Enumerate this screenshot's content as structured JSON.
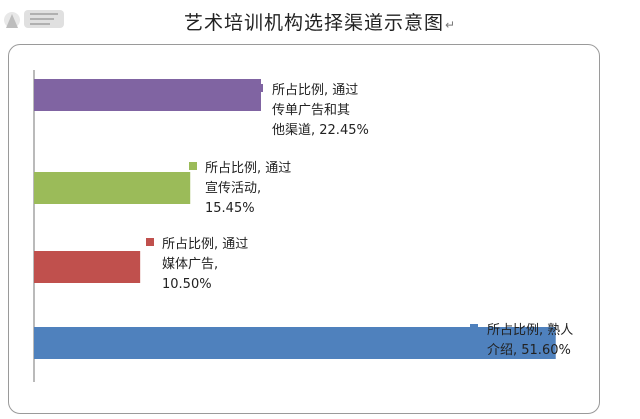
{
  "title": "艺术培训机构选择渠道示意图",
  "title_mark": "↵",
  "chart_data": {
    "type": "bar",
    "orientation": "horizontal",
    "grid": false,
    "legend": "none",
    "bars": [
      {
        "series": "所占比例",
        "category": "通过传单广告和其他渠道",
        "value": 22.45,
        "label_lines": [
          "所占比例, 通过",
          "传单广告和其",
          "他渠道, 22.45%"
        ],
        "color": "#8064a2"
      },
      {
        "series": "所占比例",
        "category": "通过宣传活动",
        "value": 15.45,
        "label_lines": [
          "所占比例, 通过",
          "宣传活动,",
          "15.45%"
        ],
        "color": "#9bbb59"
      },
      {
        "series": "所占比例",
        "category": "通过媒体广告",
        "value": 10.5,
        "label_lines": [
          "所占比例, 通过",
          "媒体广告,",
          "10.50%"
        ],
        "color": "#c0504d"
      },
      {
        "series": "所占比例",
        "category": "熟人介绍",
        "value": 51.6,
        "label_lines": [
          "所占比例, 熟人",
          "介绍, 51.60%"
        ],
        "color": "#4f81bd"
      }
    ],
    "xlim": [
      0,
      54
    ]
  }
}
